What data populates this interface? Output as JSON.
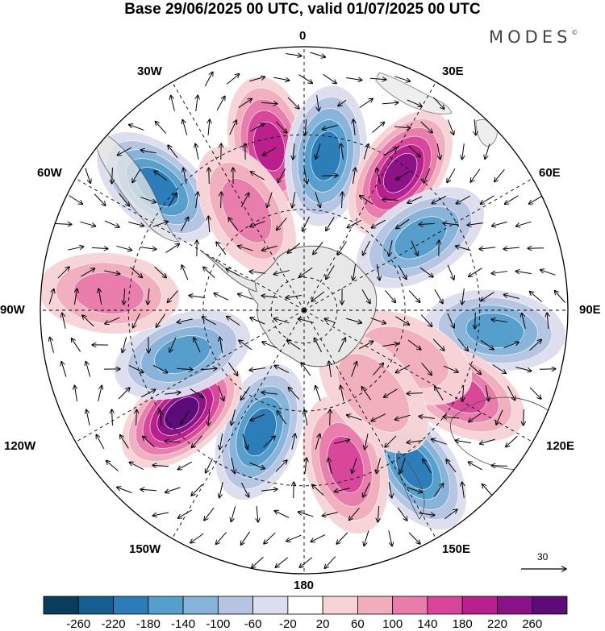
{
  "title": "Base 29/06/2025 00 UTC, valid 01/07/2025 00 UTC",
  "brand": {
    "name": "MODES",
    "mark": "©"
  },
  "longitude_labels": {
    "lon_0": "0",
    "lon_30e": "30E",
    "lon_60e": "60E",
    "lon_90e": "90E",
    "lon_120e": "120E",
    "lon_150e": "150E",
    "lon_180": "180",
    "lon_150w": "150W",
    "lon_120w": "120W",
    "lon_90w": "90W",
    "lon_60w": "60W",
    "lon_30w": "30W"
  },
  "projection": "south-polar-stereographic",
  "vector_reference": {
    "value": "30"
  },
  "colorbar": {
    "ticks": [
      "-260",
      "-220",
      "-180",
      "-140",
      "-100",
      "-60",
      "-20",
      "20",
      "60",
      "100",
      "140",
      "180",
      "220",
      "260"
    ],
    "colors": [
      "#0a3c5c",
      "#145f8f",
      "#2a7db8",
      "#559fcc",
      "#86b4d8",
      "#b5c5e1",
      "#dcdeee",
      "#ffffff",
      "#f7d3d6",
      "#f2aebe",
      "#e97cab",
      "#d8469a",
      "#b91f8d",
      "#8a1287",
      "#5c0b78"
    ]
  },
  "colors": {
    "land": "#e8e8e8",
    "coast": "#555555",
    "grid": "#000000"
  },
  "anomaly_centers": [
    {
      "lon": -12,
      "lat": -42,
      "value": 200
    },
    {
      "lon": -50,
      "lat": -36,
      "value": -180
    },
    {
      "lon": -30,
      "lat": -56,
      "value": 110
    },
    {
      "lon": 8,
      "lat": -45,
      "value": -170
    },
    {
      "lon": 35,
      "lat": -42,
      "value": 240
    },
    {
      "lon": 58,
      "lat": -50,
      "value": -150
    },
    {
      "lon": 96,
      "lat": -36,
      "value": -160
    },
    {
      "lon": 118,
      "lat": -40,
      "value": 160
    },
    {
      "lon": 145,
      "lat": -36,
      "value": -190
    },
    {
      "lon": 165,
      "lat": -44,
      "value": 130
    },
    {
      "lon": -160,
      "lat": -52,
      "value": -170
    },
    {
      "lon": -130,
      "lat": -44,
      "value": 250
    },
    {
      "lon": -110,
      "lat": -52,
      "value": -160
    },
    {
      "lon": -85,
      "lat": -35,
      "value": 110
    },
    {
      "lon": 115,
      "lat": -57,
      "value": 60
    },
    {
      "lon": 140,
      "lat": -58,
      "value": 50
    }
  ]
}
